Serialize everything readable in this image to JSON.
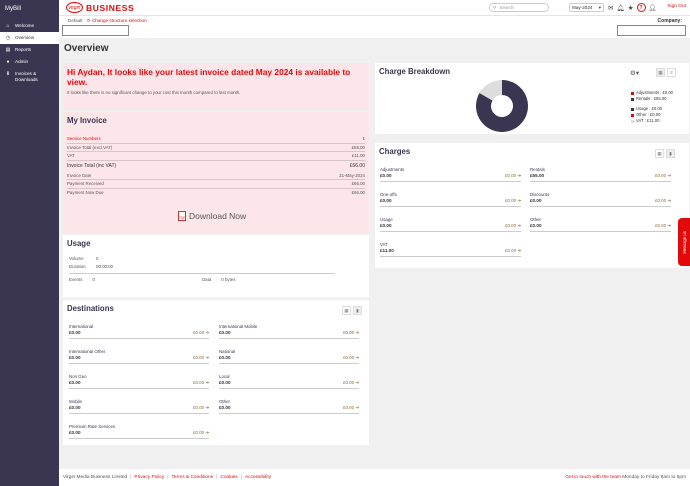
{
  "sidebar": {
    "brand": "MyBill",
    "items": [
      {
        "label": "Welcome",
        "icon": "home-icon"
      },
      {
        "label": "Overview",
        "icon": "clock-icon",
        "active": true
      },
      {
        "label": "Reports",
        "icon": "document-icon"
      },
      {
        "label": "Admin",
        "icon": "user-icon"
      },
      {
        "label": "Invoices & Downloads",
        "icon": "download-icon"
      }
    ]
  },
  "header": {
    "logo_text": "BUSINESS",
    "logo_mark": "virgin",
    "search_placeholder": "Search",
    "period": "May-2024",
    "sign_out": "Sign Out"
  },
  "context": {
    "default_label": "Default",
    "change_structure": "Change structure selection",
    "company_label": "Company:"
  },
  "page_title": "Overview",
  "welcome": {
    "heading": "Hi Aydan, It looks like your latest invoice dated May 2024 is available to view.",
    "subtext": "It looks like there is no significant change to your cost this month compared to last month."
  },
  "my_invoice": {
    "title": "My Invoice",
    "rows": [
      {
        "label": "Service Numbers",
        "value": "1"
      },
      {
        "label": "Invoice Total (excl VAT)",
        "value": "£55.00"
      },
      {
        "label": "VAT",
        "value": "£11.00"
      },
      {
        "label": "Invoice Total (inc VAT)",
        "value": "£66.00"
      },
      {
        "label": "Invoice Date",
        "value": "31-May-2024"
      },
      {
        "label": "Payment Received",
        "value": "£66.00"
      },
      {
        "label": "Payment Now Due",
        "value": "£66.00"
      }
    ],
    "download_label": "Download Now"
  },
  "usage": {
    "title": "Usage",
    "volume_label": "Volume",
    "volume_value": "0",
    "duration_label": "Duration",
    "duration_value": "00:00:00",
    "events_label": "Events",
    "events_value": "0",
    "data_label": "Data",
    "data_value": "0 bytes"
  },
  "destinations": {
    "title": "Destinations",
    "items": [
      {
        "name": "International",
        "amount": "£0.00",
        "link": "£0.00"
      },
      {
        "name": "International Mobile",
        "amount": "£0.00",
        "link": "£0.00"
      },
      {
        "name": "International Other",
        "amount": "£0.00",
        "link": "£0.00"
      },
      {
        "name": "National",
        "amount": "£0.00",
        "link": "£0.00"
      },
      {
        "name": "Non Geo",
        "amount": "£0.00",
        "link": "£0.00"
      },
      {
        "name": "Local",
        "amount": "£0.00",
        "link": "£0.00"
      },
      {
        "name": "Mobile",
        "amount": "£0.00",
        "link": "£0.00"
      },
      {
        "name": "Other",
        "amount": "£0.00",
        "link": "£0.00"
      },
      {
        "name": "Premium Rate Services",
        "amount": "£0.00",
        "link": "£0.00"
      }
    ]
  },
  "charge_breakdown": {
    "title": "Charge Breakdown",
    "legend": [
      {
        "label": "Adjustments : £0.00",
        "color": "#e10a0a",
        "value": 0
      },
      {
        "label": "Rentals : £55.00",
        "color": "#3a3550",
        "value": 55
      },
      {
        "label": "Usage : £0.00",
        "color": "#3a3550",
        "value": 0
      },
      {
        "label": "Other : £0.00",
        "color": "#e10a0a",
        "value": 0
      },
      {
        "label": "VAT : £11.00",
        "color": "#dddddd",
        "value": 11
      }
    ]
  },
  "charges": {
    "title": "Charges",
    "items": [
      {
        "name": "Adjustments",
        "amount": "£0.00",
        "link": "£0.00"
      },
      {
        "name": "Rentals",
        "amount": "£55.00",
        "link": "£0.00"
      },
      {
        "name": "One-offs",
        "amount": "£0.00",
        "link": "£0.00"
      },
      {
        "name": "Discounts",
        "amount": "£0.00",
        "link": "£0.00"
      },
      {
        "name": "Usage",
        "amount": "£0.00",
        "link": "£0.00"
      },
      {
        "name": "Other",
        "amount": "£0.00",
        "link": "£0.00"
      },
      {
        "name": "VAT",
        "amount": "£11.00",
        "link": "£0.00"
      }
    ]
  },
  "footer": {
    "company": "Virgin Media Business Limited",
    "links": [
      "Privacy Policy",
      "Terms & Conditions",
      "Cookies",
      "Accessibility"
    ],
    "contact_link": "Get in touch with the team",
    "hours": "Monday to Friday 9am to 6pm"
  },
  "message_tab": "Message us"
}
